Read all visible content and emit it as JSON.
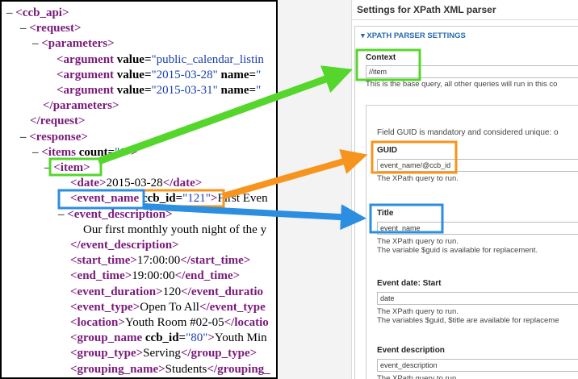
{
  "xml_lines": [
    [
      "–",
      "<ccb_api>"
    ],
    [
      "–",
      "<request>"
    ],
    [
      "–",
      "<parameters>"
    ],
    [
      "<argument",
      " value=",
      "\"public_calendar_listin"
    ],
    [
      "<argument",
      " value=",
      "\"2015-03-28\"",
      " name=",
      "\""
    ],
    [
      "<argument",
      " value=",
      "\"2015-03-31\"",
      " name=",
      "\""
    ],
    [
      "</parameters>"
    ],
    [
      "</request>"
    ],
    [
      "–",
      "<response>"
    ],
    [
      "–",
      "<items",
      " count=",
      "\"1\"",
      ">"
    ],
    [
      "–",
      "<item>"
    ],
    [
      "<date>",
      "2015-03-28",
      "</date>"
    ],
    [
      "<event_name",
      " ccb_id=",
      "\"121\"",
      ">",
      "First Even"
    ],
    [
      "–",
      "<event_description>"
    ],
    [
      "Our first monthly youth night of the y"
    ],
    [
      "</event_description>"
    ],
    [
      "<start_time>",
      "17:00:00",
      "</start_time>"
    ],
    [
      "<end_time>",
      "19:00:00",
      "</end_time>"
    ],
    [
      "<event_duration>",
      "120",
      "</event_duratio"
    ],
    [
      "<event_type>",
      "Open To All",
      "</event_type"
    ],
    [
      "<location>",
      "Youth Room #02-05",
      "</locatio"
    ],
    [
      "<group_name",
      " ccb_id=",
      "\"80\"",
      ">",
      "Youth Min"
    ],
    [
      "<group_type>",
      "Serving",
      "</group_type>"
    ],
    [
      "<grouping_name>",
      "Students",
      "</grouping_"
    ]
  ],
  "settings": {
    "title": "Settings for XPath XML parser",
    "section": "▾ XPATH PARSER SETTINGS",
    "context": {
      "label": "Context",
      "value": "//item",
      "help": "This is the base query, all other queries will run in this co"
    },
    "note": "Field GUID is mandatory and considered unique: o",
    "fields": [
      {
        "label": "GUID",
        "value": "event_name/@ccb_id",
        "help": [
          "The XPath query to run."
        ]
      },
      {
        "label": "Title",
        "value": "event_name",
        "help": [
          "The XPath query to run.",
          "The variable $guid is available for replacement."
        ]
      },
      {
        "label": "Event date: Start",
        "value": "date",
        "help": [
          "The XPath query to run.",
          "The variables $guid, $title are available for replaceme"
        ]
      },
      {
        "label": "Event description",
        "value": "event_description",
        "help": [
          "The XPath query to run."
        ]
      }
    ]
  }
}
